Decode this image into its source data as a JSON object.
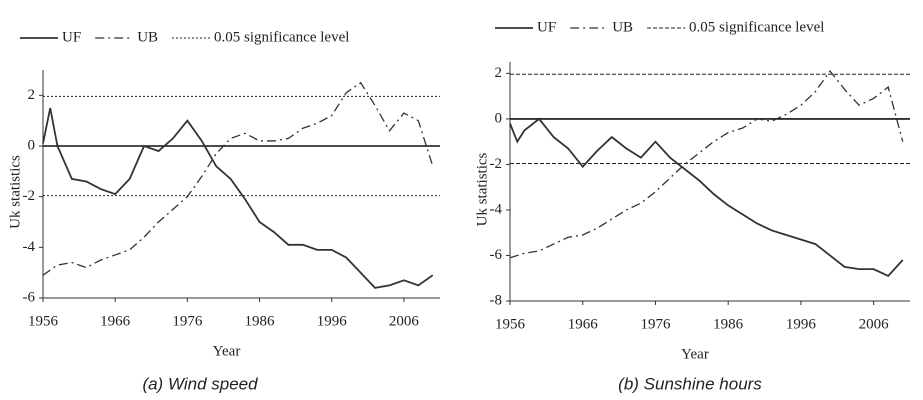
{
  "chart_data": [
    {
      "type": "line",
      "title": "(a) Wind speed",
      "xlabel": "Year",
      "ylabel": "Uk statistics",
      "xlim": [
        1956,
        2011
      ],
      "xticks": [
        1956,
        1966,
        1976,
        1986,
        1996,
        2006
      ],
      "ylim": [
        -6,
        3
      ],
      "yticks": [
        2,
        0,
        -2,
        -4,
        -6
      ],
      "x": [
        1956,
        1957,
        1958,
        1960,
        1962,
        1964,
        1966,
        1968,
        1970,
        1972,
        1974,
        1976,
        1978,
        1980,
        1982,
        1984,
        1986,
        1988,
        1990,
        1992,
        1994,
        1996,
        1998,
        2000,
        2002,
        2004,
        2006,
        2008,
        2010
      ],
      "series": [
        {
          "name": "UF",
          "color": "#333333",
          "dash": "solid",
          "values": [
            0.1,
            1.5,
            0,
            -1.3,
            -1.4,
            -1.7,
            -1.9,
            -1.3,
            0,
            -0.2,
            0.3,
            1.0,
            0.2,
            -0.8,
            -1.3,
            -2.1,
            -3.0,
            -3.4,
            -3.9,
            -3.9,
            -4.1,
            -4.1,
            -4.4,
            -5.0,
            -5.6,
            -5.5,
            -5.3,
            -5.5,
            -5.1
          ]
        },
        {
          "name": "UB",
          "color": "#333333",
          "dash": "dashdot",
          "values": [
            -5.1,
            -4.9,
            -4.7,
            -4.6,
            -4.8,
            -4.5,
            -4.3,
            -4.1,
            -3.6,
            -3.0,
            -2.5,
            -2.0,
            -1.2,
            -0.3,
            0.3,
            0.5,
            0.2,
            0.2,
            0.3,
            0.7,
            0.9,
            1.2,
            2.1,
            2.5,
            1.6,
            0.6,
            1.3,
            1.0,
            -0.8
          ]
        }
      ],
      "reference_lines": {
        "name": "0.05 significance level",
        "style": "dotted",
        "values": [
          1.96,
          -1.96
        ]
      }
    },
    {
      "type": "line",
      "title": "(b) Sunshine hours",
      "xlabel": "Year",
      "ylabel": "Uk statistics",
      "xlim": [
        1956,
        2011
      ],
      "xticks": [
        1956,
        1966,
        1976,
        1986,
        1996,
        2006
      ],
      "ylim": [
        -8,
        2.5
      ],
      "yticks": [
        2,
        0,
        -2,
        -4,
        -6,
        -8
      ],
      "x": [
        1956,
        1957,
        1958,
        1960,
        1962,
        1964,
        1966,
        1968,
        1970,
        1972,
        1974,
        1976,
        1978,
        1980,
        1982,
        1984,
        1986,
        1988,
        1990,
        1992,
        1994,
        1996,
        1998,
        2000,
        2002,
        2004,
        2006,
        2008,
        2010
      ],
      "series": [
        {
          "name": "UF",
          "color": "#333333",
          "dash": "solid",
          "values": [
            -0.2,
            -1.0,
            -0.5,
            0,
            -0.8,
            -1.3,
            -2.1,
            -1.4,
            -0.8,
            -1.3,
            -1.7,
            -1.0,
            -1.7,
            -2.2,
            -2.7,
            -3.3,
            -3.8,
            -4.2,
            -4.6,
            -4.9,
            -5.1,
            -5.3,
            -5.5,
            -6.0,
            -6.5,
            -6.6,
            -6.6,
            -6.9,
            -6.2
          ]
        },
        {
          "name": "UB",
          "color": "#333333",
          "dash": "dashdot",
          "values": [
            -6.1,
            -6.0,
            -5.9,
            -5.8,
            -5.5,
            -5.2,
            -5.1,
            -4.8,
            -4.4,
            -4.0,
            -3.7,
            -3.2,
            -2.6,
            -2.0,
            -1.5,
            -1.0,
            -0.6,
            -0.4,
            0,
            -0.1,
            0.2,
            0.6,
            1.2,
            2.1,
            1.3,
            0.6,
            0.9,
            1.4,
            -1.0
          ]
        }
      ],
      "reference_lines": {
        "name": "0.05 significance level",
        "style": "dashed",
        "values": [
          1.96,
          -1.96
        ]
      }
    }
  ]
}
